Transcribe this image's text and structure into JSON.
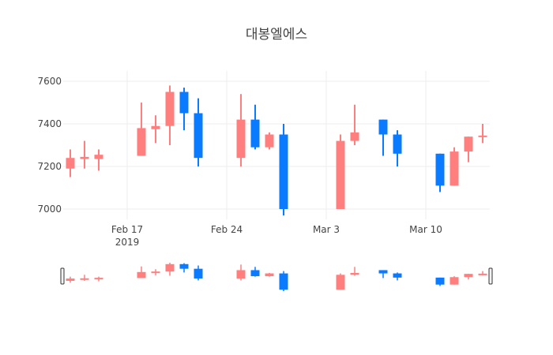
{
  "chart_data": {
    "type": "candlestick",
    "title": "대봉엘에스",
    "xlabel": "",
    "ylabel": "",
    "x_tick_labels": [
      {
        "date": "2019-02-17",
        "label": "Feb 17",
        "sublabel": "2019"
      },
      {
        "date": "2019-02-24",
        "label": "Feb 24",
        "sublabel": ""
      },
      {
        "date": "2019-03-03",
        "label": "Mar 3",
        "sublabel": ""
      },
      {
        "date": "2019-03-10",
        "label": "Mar 10",
        "sublabel": ""
      }
    ],
    "y_ticks": [
      7000,
      7200,
      7400,
      7600
    ],
    "ylim": [
      6950,
      7630
    ],
    "xlim": [
      "2019-02-12 12:00",
      "2019-03-14 12:00"
    ],
    "grid": true,
    "legend": false,
    "rangeslider": true,
    "colors": {
      "increasing": "#ff7f7f",
      "decreasing": "#0a7aff"
    },
    "candles": [
      {
        "date": "2019-02-13",
        "open": 7190,
        "high": 7280,
        "low": 7150,
        "close": 7240
      },
      {
        "date": "2019-02-14",
        "open": 7235,
        "high": 7320,
        "low": 7190,
        "close": 7245
      },
      {
        "date": "2019-02-15",
        "open": 7235,
        "high": 7280,
        "low": 7180,
        "close": 7255
      },
      {
        "date": "2019-02-18",
        "open": 7250,
        "high": 7500,
        "low": 7250,
        "close": 7380
      },
      {
        "date": "2019-02-19",
        "open": 7375,
        "high": 7440,
        "low": 7310,
        "close": 7390
      },
      {
        "date": "2019-02-20",
        "open": 7390,
        "high": 7580,
        "low": 7300,
        "close": 7550
      },
      {
        "date": "2019-02-21",
        "open": 7550,
        "high": 7570,
        "low": 7370,
        "close": 7450
      },
      {
        "date": "2019-02-22",
        "open": 7450,
        "high": 7520,
        "low": 7200,
        "close": 7240
      },
      {
        "date": "2019-02-25",
        "open": 7240,
        "high": 7540,
        "low": 7200,
        "close": 7420
      },
      {
        "date": "2019-02-26",
        "open": 7420,
        "high": 7490,
        "low": 7280,
        "close": 7290
      },
      {
        "date": "2019-02-27",
        "open": 7290,
        "high": 7360,
        "low": 7280,
        "close": 7350
      },
      {
        "date": "2019-02-28",
        "open": 7350,
        "high": 7400,
        "low": 6970,
        "close": 7000
      },
      {
        "date": "2019-03-04",
        "open": 7000,
        "high": 7350,
        "low": 7000,
        "close": 7320
      },
      {
        "date": "2019-03-05",
        "open": 7320,
        "high": 7490,
        "low": 7300,
        "close": 7360
      },
      {
        "date": "2019-03-07",
        "open": 7420,
        "high": 7420,
        "low": 7250,
        "close": 7350
      },
      {
        "date": "2019-03-08",
        "open": 7350,
        "high": 7370,
        "low": 7200,
        "close": 7260
      },
      {
        "date": "2019-03-11",
        "open": 7260,
        "high": 7260,
        "low": 7080,
        "close": 7110
      },
      {
        "date": "2019-03-12",
        "open": 7110,
        "high": 7290,
        "low": 7110,
        "close": 7270
      },
      {
        "date": "2019-03-13",
        "open": 7270,
        "high": 7340,
        "low": 7220,
        "close": 7340
      },
      {
        "date": "2019-03-14",
        "open": 7340,
        "high": 7400,
        "low": 7310,
        "close": 7345
      }
    ]
  }
}
